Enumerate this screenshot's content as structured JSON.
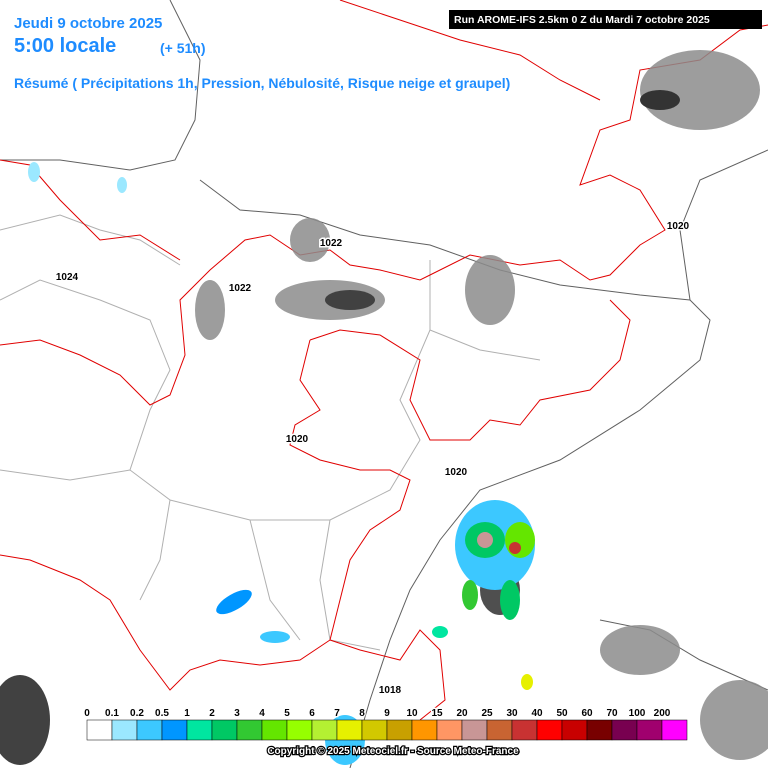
{
  "header": {
    "date": "Jeudi 9 octobre 2025",
    "time": "5:00 locale",
    "lead": "(+ 51h)",
    "subtitle": "Résumé ( Précipitations 1h, Pression, Nébulosité, Risque neige et graupel)",
    "run": "Run AROME-IFS 2.5km 0 Z du Mardi 7 octobre 2025"
  },
  "isobars": [
    "1022",
    "1022",
    "1024",
    "1020",
    "1020",
    "1020",
    "1018"
  ],
  "scale": [
    {
      "label": "0",
      "color": "#ffffff"
    },
    {
      "label": "0.1",
      "color": "#9be8ff"
    },
    {
      "label": "0.2",
      "color": "#3cc8ff"
    },
    {
      "label": "0.5",
      "color": "#0096ff"
    },
    {
      "label": "1",
      "color": "#00e6a0"
    },
    {
      "label": "2",
      "color": "#00c864"
    },
    {
      "label": "3",
      "color": "#32c832"
    },
    {
      "label": "4",
      "color": "#64e600"
    },
    {
      "label": "5",
      "color": "#96ff00"
    },
    {
      "label": "6",
      "color": "#b4f032"
    },
    {
      "label": "7",
      "color": "#e6f000"
    },
    {
      "label": "8",
      "color": "#d2c800"
    },
    {
      "label": "9",
      "color": "#c8a000"
    },
    {
      "label": "10",
      "color": "#ff9600"
    },
    {
      "label": "15",
      "color": "#ff9664"
    },
    {
      "label": "20",
      "color": "#c89696"
    },
    {
      "label": "25",
      "color": "#c86432"
    },
    {
      "label": "30",
      "color": "#c83232"
    },
    {
      "label": "40",
      "color": "#ff0000"
    },
    {
      "label": "50",
      "color": "#c80000"
    },
    {
      "label": "60",
      "color": "#780000"
    },
    {
      "label": "70",
      "color": "#780050"
    },
    {
      "label": "100",
      "color": "#a0006e"
    },
    {
      "label": "200",
      "color": "#ff00ff"
    }
  ],
  "copyright": "Copyright © 2025 Meteociel.fr - Source Meteo-France"
}
